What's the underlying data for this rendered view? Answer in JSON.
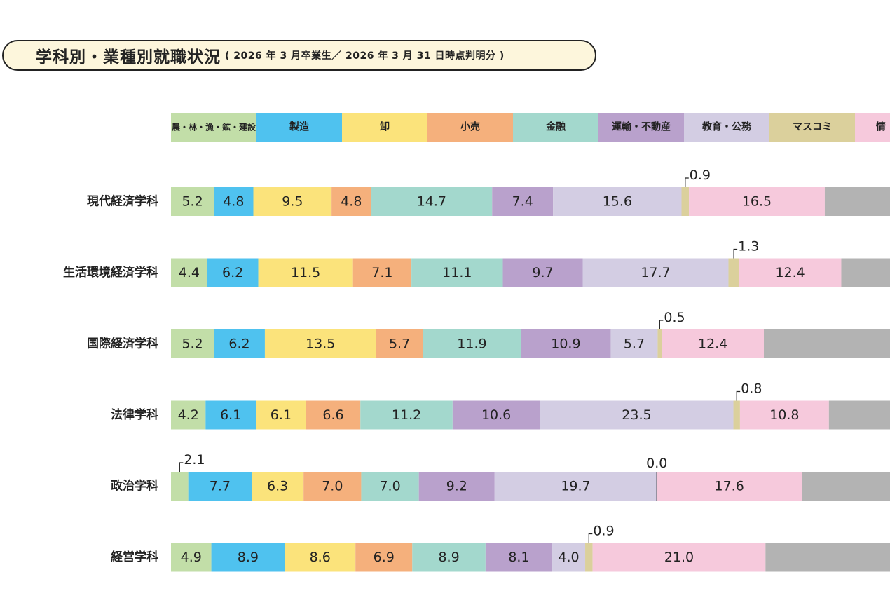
{
  "title": {
    "main": "学科別・業種別就職状況",
    "sub": "( 2026 年 3 月卒業生／ 2026 年 3 月 31 日時点判明分 )"
  },
  "colors": {
    "農・林・漁・鉱・建設": "#c2dea8",
    "製造": "#4fc2ef",
    "卸": "#fbe37b",
    "小売": "#f5b07c",
    "金融": "#a3d8cd",
    "運輸・不動産": "#b9a1cc",
    "教育・公務": "#d3cde3",
    "マスコミ": "#dbd09c",
    "情報": "#f6c9dc",
    "その他": "#b3b3b3"
  },
  "chart_data": {
    "type": "bar",
    "orientation": "horizontal",
    "stacked": true,
    "unit": "%",
    "categories": [
      "現代経済学科",
      "生活環境経済学科",
      "国際経済学科",
      "法律学科",
      "政治学科",
      "経営学科"
    ],
    "series": [
      {
        "name": "農・林・漁・鉱・建設",
        "values": [
          5.2,
          4.4,
          5.2,
          4.2,
          2.1,
          4.9
        ]
      },
      {
        "name": "製造",
        "values": [
          4.8,
          6.2,
          6.2,
          6.1,
          7.7,
          8.9
        ]
      },
      {
        "name": "卸",
        "values": [
          9.5,
          11.5,
          13.5,
          6.1,
          6.3,
          8.6
        ]
      },
      {
        "name": "小売",
        "values": [
          4.8,
          7.1,
          5.7,
          6.6,
          7.0,
          6.9
        ]
      },
      {
        "name": "金融",
        "values": [
          14.7,
          11.1,
          11.9,
          11.2,
          7.0,
          8.9
        ]
      },
      {
        "name": "運輸・不動産",
        "values": [
          7.4,
          9.7,
          10.9,
          10.6,
          9.2,
          8.1
        ]
      },
      {
        "name": "教育・公務",
        "values": [
          15.6,
          17.7,
          5.7,
          23.5,
          19.7,
          4.0
        ]
      },
      {
        "name": "マスコミ",
        "values": [
          0.9,
          1.3,
          0.5,
          0.8,
          0.0,
          0.9
        ]
      },
      {
        "name": "情報",
        "values": [
          16.5,
          12.4,
          12.4,
          10.8,
          17.6,
          21.0
        ]
      }
    ],
    "legend_position": "top",
    "legend_labels": [
      "農・林・漁・鉱・建設",
      "製造",
      "卸",
      "小売",
      "金融",
      "運輸・不動産",
      "教育・公務",
      "マスコミ",
      "情"
    ]
  }
}
